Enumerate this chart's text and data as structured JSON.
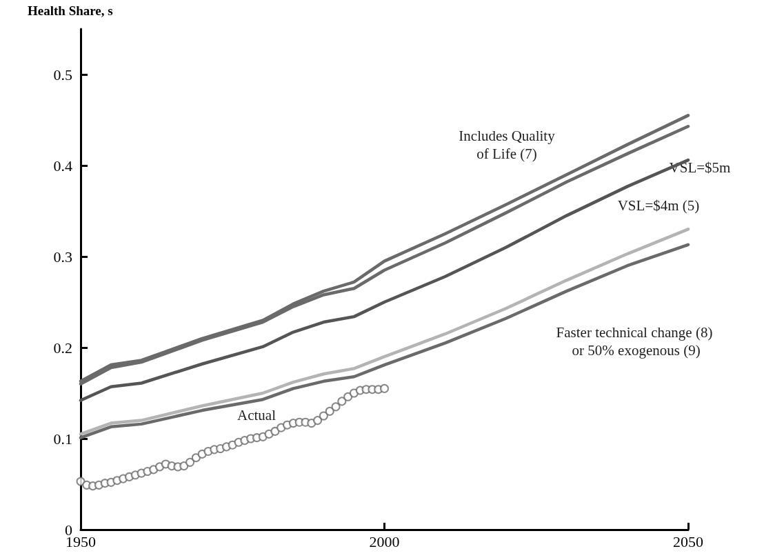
{
  "chart_data": {
    "type": "line",
    "ylabel": "Health Share, s",
    "xlim": [
      1950,
      2050
    ],
    "xticks": [
      1950,
      2000,
      2050
    ],
    "ylim": [
      0,
      0.55
    ],
    "yticks": [
      0,
      0.1,
      0.2,
      0.3,
      0.4,
      0.5
    ],
    "grid": false,
    "line_style": "solid",
    "series": [
      {
        "color": "#6a6a6a",
        "marker": "none",
        "x": [
          1950,
          1955,
          1960,
          1970,
          1980,
          1985,
          1990,
          1995,
          2000,
          2010,
          2020,
          2030,
          2040,
          2050
        ],
        "values": [
          0.163,
          0.181,
          0.186,
          0.21,
          0.23,
          0.248,
          0.262,
          0.272,
          0.295,
          0.325,
          0.357,
          0.39,
          0.423,
          0.455
        ]
      },
      {
        "color": "#6a6a6a",
        "marker": "none",
        "x": [
          1950,
          1955,
          1960,
          1970,
          1980,
          1985,
          1990,
          1995,
          2000,
          2010,
          2020,
          2030,
          2040,
          2050
        ],
        "values": [
          0.16,
          0.178,
          0.184,
          0.208,
          0.228,
          0.245,
          0.258,
          0.265,
          0.285,
          0.315,
          0.348,
          0.382,
          0.413,
          0.443
        ]
      },
      {
        "color": "#555555",
        "marker": "none",
        "x": [
          1950,
          1955,
          1960,
          1970,
          1980,
          1985,
          1990,
          1995,
          2000,
          2010,
          2020,
          2030,
          2040,
          2050
        ],
        "values": [
          0.142,
          0.157,
          0.161,
          0.182,
          0.201,
          0.217,
          0.228,
          0.234,
          0.25,
          0.278,
          0.31,
          0.345,
          0.377,
          0.406
        ]
      },
      {
        "color": "#b4b4b4",
        "marker": "none",
        "x": [
          1950,
          1955,
          1960,
          1970,
          1980,
          1985,
          1990,
          1995,
          2000,
          2010,
          2020,
          2030,
          2040,
          2050
        ],
        "values": [
          0.105,
          0.117,
          0.12,
          0.136,
          0.15,
          0.162,
          0.171,
          0.177,
          0.19,
          0.215,
          0.243,
          0.274,
          0.303,
          0.33
        ]
      },
      {
        "color": "#6a6a6a",
        "marker": "none",
        "x": [
          1950,
          1955,
          1960,
          1970,
          1980,
          1985,
          1990,
          1995,
          2000,
          2010,
          2020,
          2030,
          2040,
          2050
        ],
        "values": [
          0.101,
          0.113,
          0.116,
          0.131,
          0.143,
          0.155,
          0.163,
          0.168,
          0.181,
          0.205,
          0.232,
          0.262,
          0.29,
          0.313
        ]
      },
      {
        "type": "scatter",
        "color": "#6a6a6a",
        "marker": "circle",
        "x": [
          1950,
          1951,
          1952,
          1953,
          1954,
          1955,
          1956,
          1957,
          1958,
          1959,
          1960,
          1961,
          1962,
          1963,
          1964,
          1965,
          1966,
          1967,
          1968,
          1969,
          1970,
          1971,
          1972,
          1973,
          1974,
          1975,
          1976,
          1977,
          1978,
          1979,
          1980,
          1981,
          1982,
          1983,
          1984,
          1985,
          1986,
          1987,
          1988,
          1989,
          1990,
          1991,
          1992,
          1993,
          1994,
          1995,
          1996,
          1997,
          1998,
          1999,
          2000
        ],
        "values": [
          0.053,
          0.049,
          0.048,
          0.049,
          0.051,
          0.052,
          0.054,
          0.056,
          0.058,
          0.06,
          0.062,
          0.064,
          0.066,
          0.069,
          0.072,
          0.07,
          0.069,
          0.07,
          0.074,
          0.079,
          0.083,
          0.086,
          0.088,
          0.089,
          0.091,
          0.093,
          0.096,
          0.098,
          0.1,
          0.101,
          0.102,
          0.105,
          0.108,
          0.112,
          0.115,
          0.117,
          0.118,
          0.118,
          0.117,
          0.12,
          0.125,
          0.13,
          0.135,
          0.141,
          0.146,
          0.15,
          0.153,
          0.154,
          0.154,
          0.154,
          0.155
        ]
      }
    ],
    "annotations": [
      "Includes Quality\nof Life (7)",
      "VSL=$5m",
      "VSL=$4m (5)",
      "Faster technical change (8)\n or 50% exogenous (9)",
      "Actual"
    ]
  }
}
